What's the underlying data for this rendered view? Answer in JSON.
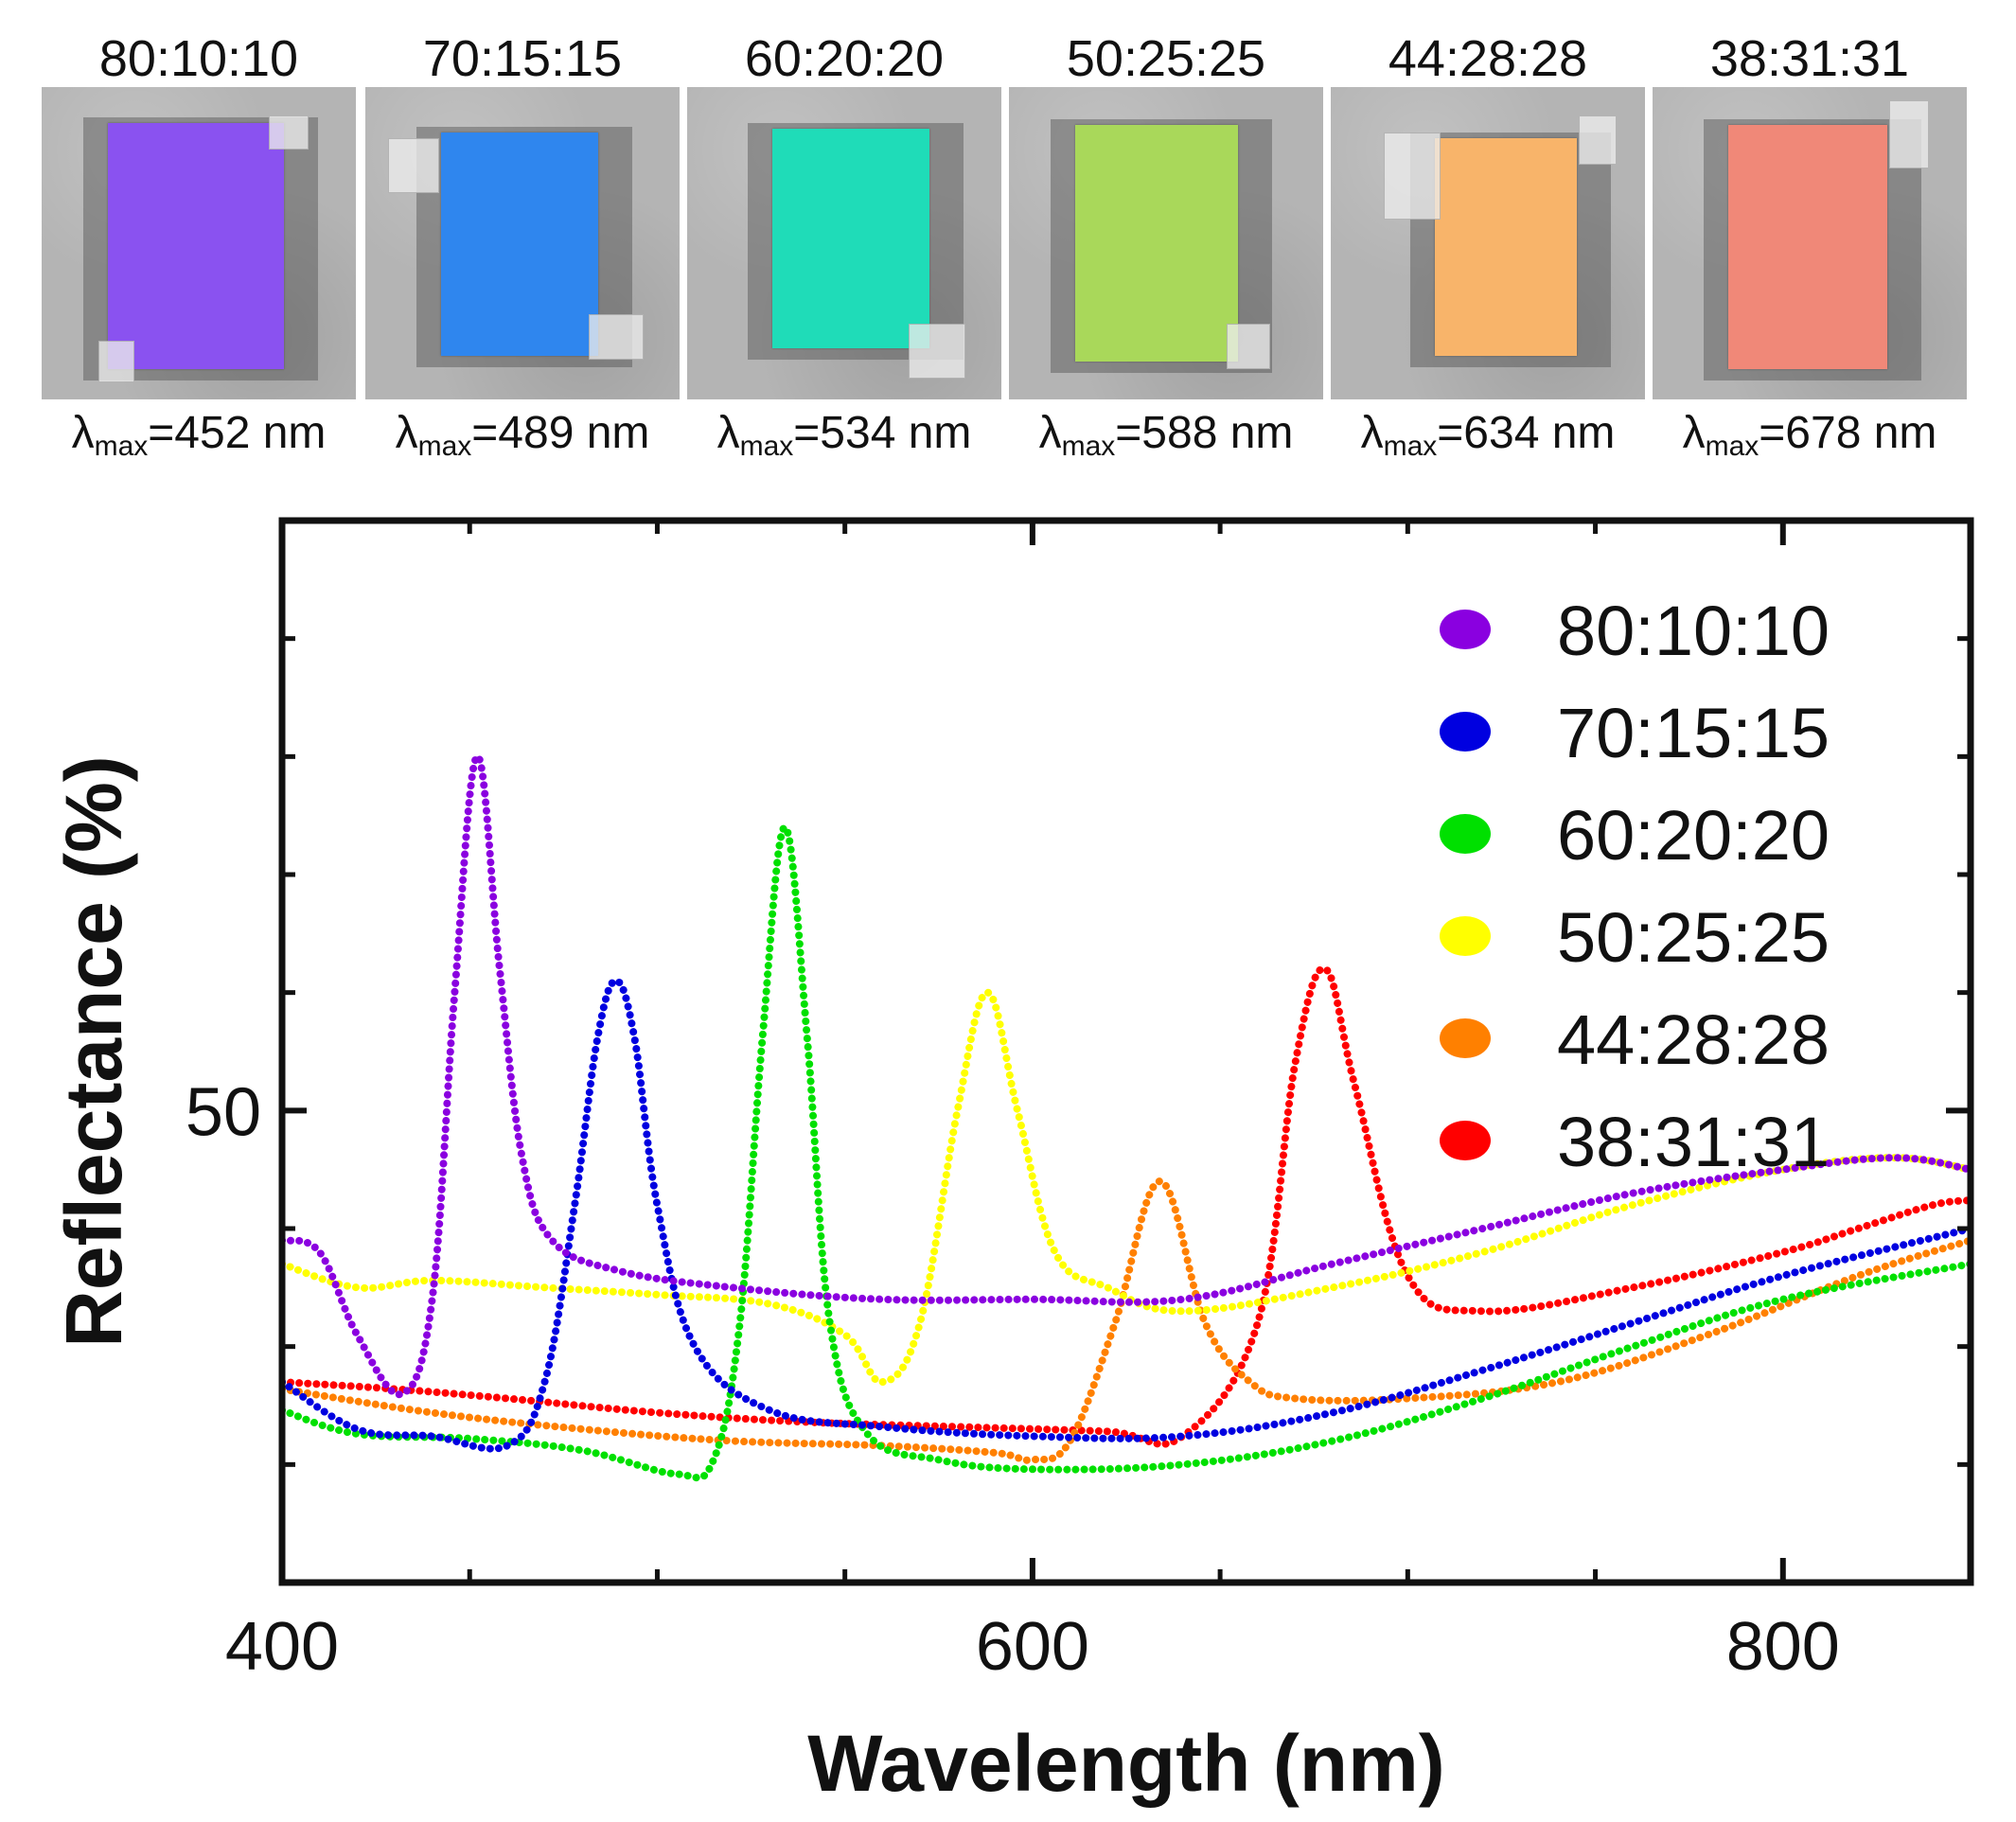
{
  "samples": [
    {
      "ratio": "80:10:10",
      "lambda_symbol": "λ",
      "lambda_sub": "max",
      "lambda_value": "=452 nm",
      "color": "#8a52f0"
    },
    {
      "ratio": "70:15:15",
      "lambda_symbol": "λ",
      "lambda_sub": "max",
      "lambda_value": "=489 nm",
      "color": "#2f86ee"
    },
    {
      "ratio": "60:20:20",
      "lambda_symbol": "λ",
      "lambda_sub": "max",
      "lambda_value": "=534 nm",
      "color": "#1fdcb8"
    },
    {
      "ratio": "50:25:25",
      "lambda_symbol": "λ",
      "lambda_sub": "max",
      "lambda_value": "=588 nm",
      "color": "#a9d85a"
    },
    {
      "ratio": "44:28:28",
      "lambda_symbol": "λ",
      "lambda_sub": "max",
      "lambda_value": "=634 nm",
      "color": "#f8b46a"
    },
    {
      "ratio": "38:31:31",
      "lambda_symbol": "λ",
      "lambda_sub": "max",
      "lambda_value": "=678 nm",
      "color": "#f08878"
    }
  ],
  "chart_data": {
    "type": "line",
    "title": "",
    "xlabel": "Wavelength (nm)",
    "ylabel": "Reflectance (%)",
    "xlim": [
      400,
      850
    ],
    "ylim": [
      30,
      75
    ],
    "x_ticks": [
      400,
      600,
      800
    ],
    "x_minor_ticks": [
      450,
      500,
      550,
      650,
      700,
      750
    ],
    "y_ticks": [
      50
    ],
    "y_minor_ticks": [
      35,
      40,
      45,
      55,
      60,
      65,
      70
    ],
    "legend_position": "top-right",
    "series": [
      {
        "name": "38:31:31",
        "color": "#ff0000",
        "style": "dotted",
        "x": [
          400,
          430,
          460,
          500,
          540,
          580,
          620,
          640,
          660,
          670,
          678,
          686,
          700,
          720,
          760,
          800,
          820,
          840,
          850
        ],
        "y": [
          38.5,
          38.2,
          37.8,
          37.2,
          36.8,
          36.6,
          36.4,
          36.2,
          41,
          52,
          56,
          51,
          43,
          41.5,
          42.5,
          44,
          45,
          46,
          46.2
        ]
      },
      {
        "name": "44:28:28",
        "color": "#ff8000",
        "style": "dotted",
        "x": [
          400,
          440,
          480,
          520,
          560,
          590,
          600,
          610,
          622,
          634,
          646,
          658,
          670,
          700,
          740,
          780,
          820,
          850
        ],
        "y": [
          38.2,
          37.2,
          36.5,
          36.0,
          35.8,
          35.5,
          35.2,
          36,
          41,
          47,
          41,
          38.5,
          37.8,
          37.8,
          38.5,
          40.5,
          43,
          44.5
        ]
      },
      {
        "name": "50:25:25",
        "color": "#ffff00",
        "style": "dotted",
        "x": [
          400,
          420,
          440,
          470,
          500,
          530,
          550,
          560,
          570,
          580,
          588,
          596,
          606,
          620,
          640,
          680,
          720,
          760,
          800,
          830,
          850
        ],
        "y": [
          43.5,
          42.5,
          42.8,
          42.5,
          42.2,
          41.8,
          40.5,
          38.5,
          41,
          50,
          55,
          50,
          44,
          42.5,
          41.5,
          42.5,
          44,
          46,
          47.5,
          48,
          47.5
        ]
      },
      {
        "name": "60:20:20",
        "color": "#00e000",
        "style": "dotted",
        "x": [
          400,
          420,
          450,
          480,
          505,
          515,
          522,
          528,
          534,
          540,
          546,
          556,
          575,
          600,
          640,
          680,
          720,
          760,
          800,
          850
        ],
        "y": [
          37.3,
          36.3,
          36.1,
          35.6,
          34.6,
          35.2,
          41,
          53,
          62,
          53,
          41,
          36.3,
          35.2,
          34.8,
          35,
          36,
          37.8,
          40,
          42,
          43.5
        ]
      },
      {
        "name": "70:15:15",
        "color": "#0000e0",
        "style": "dotted",
        "x": [
          400,
          420,
          440,
          460,
          470,
          478,
          484,
          489,
          494,
          500,
          510,
          530,
          560,
          600,
          640,
          680,
          720,
          760,
          800,
          850
        ],
        "y": [
          38.5,
          36.5,
          36.2,
          35.8,
          38.5,
          46,
          53,
          55.5,
          53,
          46,
          40,
          37.3,
          36.6,
          36.2,
          36.2,
          37.2,
          39,
          41,
          43,
          45
        ]
      },
      {
        "name": "80:10:10",
        "color": "#8a00e0",
        "style": "dotted",
        "x": [
          400,
          410,
          420,
          432,
          440,
          446,
          452,
          458,
          464,
          472,
          490,
          520,
          560,
          600,
          640,
          680,
          720,
          760,
          800,
          830,
          850
        ],
        "y": [
          44.5,
          44,
          40.5,
          38,
          42,
          55,
          65,
          56,
          48,
          44.5,
          43.2,
          42.5,
          42,
          42,
          42,
          43.5,
          45,
          46.5,
          47.5,
          48,
          47.5
        ]
      }
    ]
  }
}
